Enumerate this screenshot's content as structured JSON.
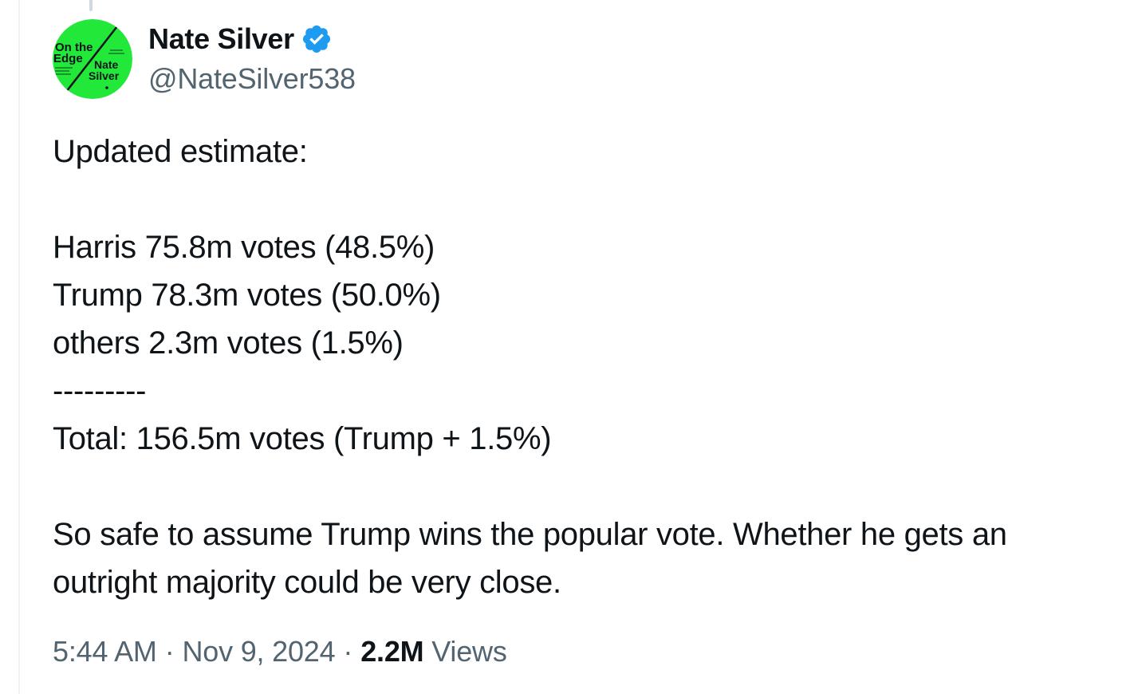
{
  "author": {
    "display_name": "Nate Silver",
    "handle": "@NateSilver538",
    "verified_icon": "verified-badge-icon",
    "avatar": {
      "book_title_line1": "On the",
      "book_title_line2": "Edge",
      "author_line1": "Nate",
      "author_line2": "Silver",
      "bg_color": "#22e83a"
    }
  },
  "tweet": {
    "line_1": "Updated estimate:",
    "line_2": "Harris 75.8m votes (48.5%)",
    "line_3": "Trump 78.3m votes (50.0%)",
    "line_4": "others 2.3m votes (1.5%)",
    "line_5": "---------",
    "line_6": "Total: 156.5m votes (Trump + 1.5%)",
    "line_7": "So safe to assume Trump wins the popular vote. Whether he gets an",
    "line_8": "outright majority could be very close."
  },
  "meta": {
    "time": "5:44 AM",
    "separator": "·",
    "date": "Nov 9, 2024",
    "views_count": "2.2M",
    "views_label": "Views"
  },
  "colors": {
    "text": "#0f1419",
    "secondary": "#536471",
    "verified": "#1d9bf0"
  }
}
